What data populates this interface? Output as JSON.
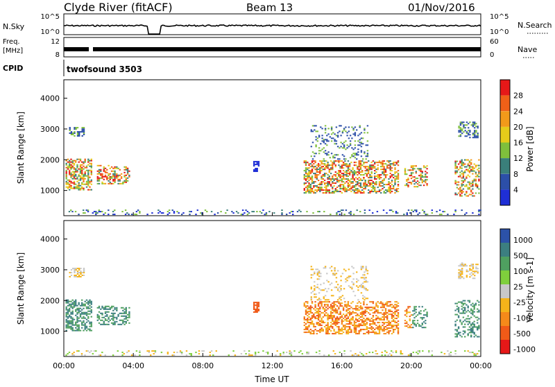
{
  "header": {
    "station": "Clyde River (fitACF)",
    "beam": "Beam 13",
    "date": "01/Nov/2016"
  },
  "sky_panel": {
    "left_label": "N.Sky",
    "right_label": "N.Search",
    "left_ticks": [
      "10^5",
      "10^0"
    ],
    "right_ticks": [
      "10^5",
      "10^0"
    ]
  },
  "freq_panel": {
    "left_label_1": "Freq.",
    "left_label_2": "[MHz]",
    "right_label": "Nave",
    "left_ticks": [
      "12",
      "8"
    ],
    "right_ticks": [
      "60",
      "0"
    ]
  },
  "cpid": {
    "label": "CPID",
    "program": "twofsound 3503"
  },
  "colors": {
    "power_scale": [
      "#1f2fd6",
      "#2c4fa8",
      "#3a7f7a",
      "#7fbf3c",
      "#e6cc1a",
      "#f29a1a",
      "#f06018",
      "#e61818"
    ],
    "velocity_scale": [
      "#e61818",
      "#f05a18",
      "#f58a1a",
      "#f5b41a",
      "#c8c8c8",
      "#7fcf3c",
      "#4fa060",
      "#3c7f80",
      "#2c52a8"
    ]
  },
  "chart_data": [
    {
      "type": "heatmap",
      "name": "power",
      "ylabel": "Slant Range [km]",
      "ylim": [
        180,
        4600
      ],
      "yticks": [
        1000,
        2000,
        3000,
        4000
      ],
      "xlim_hours": [
        0,
        24
      ],
      "xticks": [
        "00:00",
        "04:00",
        "08:00",
        "12:00",
        "16:00",
        "20:00",
        "00:00"
      ],
      "colorbar": {
        "label": "Power [dB]",
        "range": [
          0,
          32
        ],
        "ticks": [
          "28",
          "24",
          "20",
          "16",
          "12",
          "8",
          "4"
        ]
      }
    },
    {
      "type": "heatmap",
      "name": "velocity",
      "ylabel": "Slant Range [km]",
      "xlabel": "Time UT",
      "ylim": [
        180,
        4600
      ],
      "yticks": [
        1000,
        2000,
        3000,
        4000
      ],
      "xlim_hours": [
        0,
        24
      ],
      "xticks": [
        "00:00",
        "04:00",
        "08:00",
        "12:00",
        "16:00",
        "20:00",
        "00:00"
      ],
      "colorbar": {
        "label": "Velocity [m s-1]",
        "ticks": [
          "1000",
          "500",
          "100",
          "25",
          "-25",
          "-100",
          "-500",
          "-1000"
        ]
      }
    }
  ]
}
